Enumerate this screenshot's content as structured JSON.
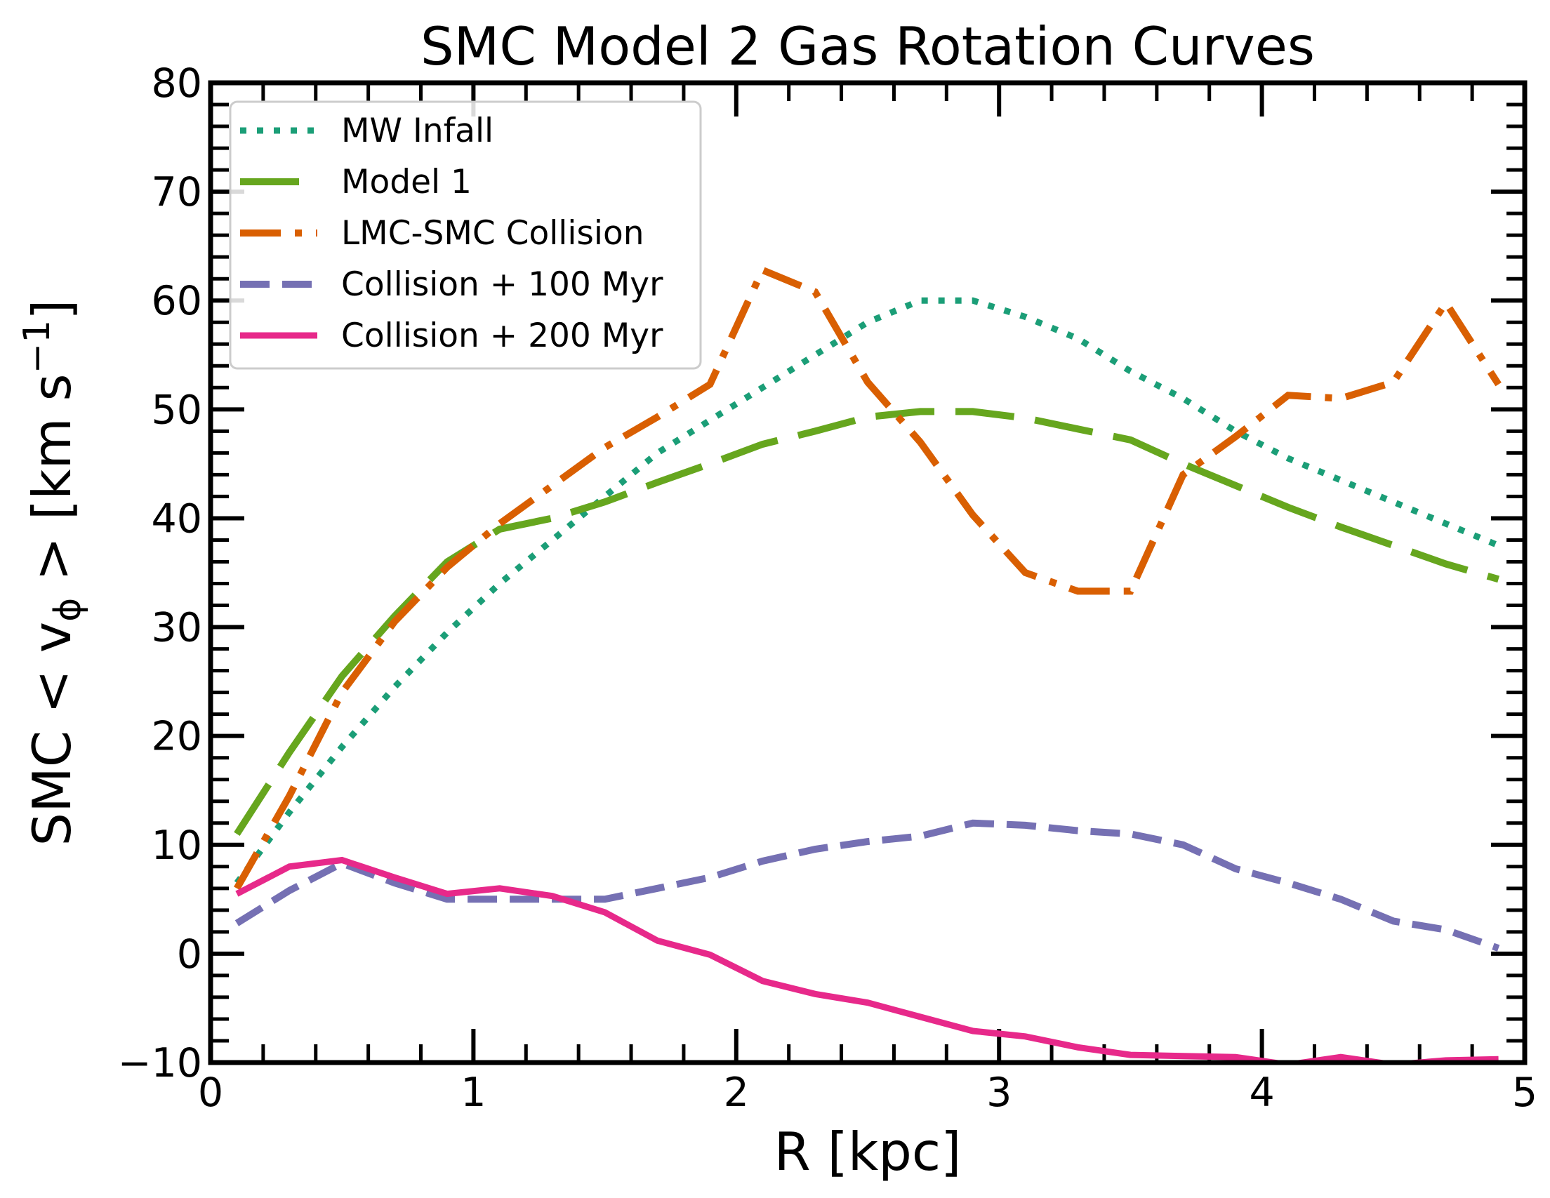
{
  "chart_data": {
    "type": "line",
    "title": "SMC Model 2 Gas Rotation Curves",
    "xlabel": "R [kpc]",
    "ylabel": {
      "prefix": "SMC  < v",
      "subscript": "ϕ",
      "middle": " >  [km s",
      "superscript": "−1",
      "suffix": "]"
    },
    "xlim": [
      0,
      5
    ],
    "ylim": [
      -10,
      80
    ],
    "xticks": [
      0,
      1,
      2,
      3,
      4,
      5
    ],
    "xtick_labels": [
      "0",
      "1",
      "2",
      "3",
      "4",
      "5"
    ],
    "yticks": [
      -10,
      0,
      10,
      20,
      30,
      40,
      50,
      60,
      70,
      80
    ],
    "ytick_labels": [
      "−10",
      "0",
      "10",
      "20",
      "30",
      "40",
      "50",
      "60",
      "70",
      "80"
    ],
    "grid": false,
    "legend_position": "upper-left",
    "x": [
      0.1,
      0.3,
      0.5,
      0.7,
      0.9,
      1.1,
      1.3,
      1.5,
      1.7,
      1.9,
      2.1,
      2.3,
      2.5,
      2.7,
      2.9,
      3.1,
      3.3,
      3.5,
      3.7,
      3.9,
      4.1,
      4.3,
      4.5,
      4.7,
      4.9
    ],
    "series": [
      {
        "name": "MW Infall",
        "style": "dotted",
        "color": "#1b9e77",
        "values": [
          6.5,
          13,
          19,
          24.5,
          29.5,
          34,
          38,
          42,
          46,
          49,
          52,
          55,
          58,
          60,
          60,
          58.5,
          56.5,
          53.5,
          51,
          48,
          45.5,
          43.5,
          41.5,
          39.5,
          37.5
        ]
      },
      {
        "name": "Model 1",
        "style": "long-dash",
        "color": "#66a61e",
        "values": [
          11,
          18.5,
          25.5,
          31,
          36,
          39,
          40,
          41.5,
          43.3,
          45,
          46.8,
          48,
          49.3,
          49.8,
          49.8,
          49.2,
          48.2,
          47.2,
          45,
          43,
          41,
          39.2,
          37.5,
          35.8,
          34.4
        ]
      },
      {
        "name": "LMC-SMC Collision",
        "style": "dash-dot",
        "color": "#d95f02",
        "values": [
          6,
          14.5,
          24,
          30.5,
          35.5,
          39.5,
          43,
          46.5,
          49.3,
          52.3,
          62.8,
          60.8,
          52.5,
          47,
          40.3,
          35,
          33.3,
          33.3,
          44,
          47.5,
          51.3,
          51,
          52.5,
          59.8,
          52.3
        ]
      },
      {
        "name": "Collision + 100 Myr",
        "style": "dashed",
        "color": "#7570b3",
        "values": [
          2.8,
          5.8,
          8.3,
          6.5,
          5,
          5,
          5,
          5,
          6,
          7,
          8.5,
          9.6,
          10.3,
          10.8,
          12,
          11.8,
          11.3,
          11,
          10,
          7.8,
          6.5,
          5,
          3,
          2.2,
          0.5
        ]
      },
      {
        "name": "Collision + 200 Myr",
        "style": "solid",
        "color": "#e7298a",
        "values": [
          5.5,
          8,
          8.6,
          7,
          5.5,
          6,
          5.3,
          3.8,
          1.2,
          -0.1,
          -2.5,
          -3.7,
          -4.5,
          -5.8,
          -7.1,
          -7.6,
          -8.6,
          -9.3,
          -9.4,
          -9.5,
          -10.2,
          -9.5,
          -10.2,
          -9.8,
          -9.7
        ]
      }
    ]
  }
}
